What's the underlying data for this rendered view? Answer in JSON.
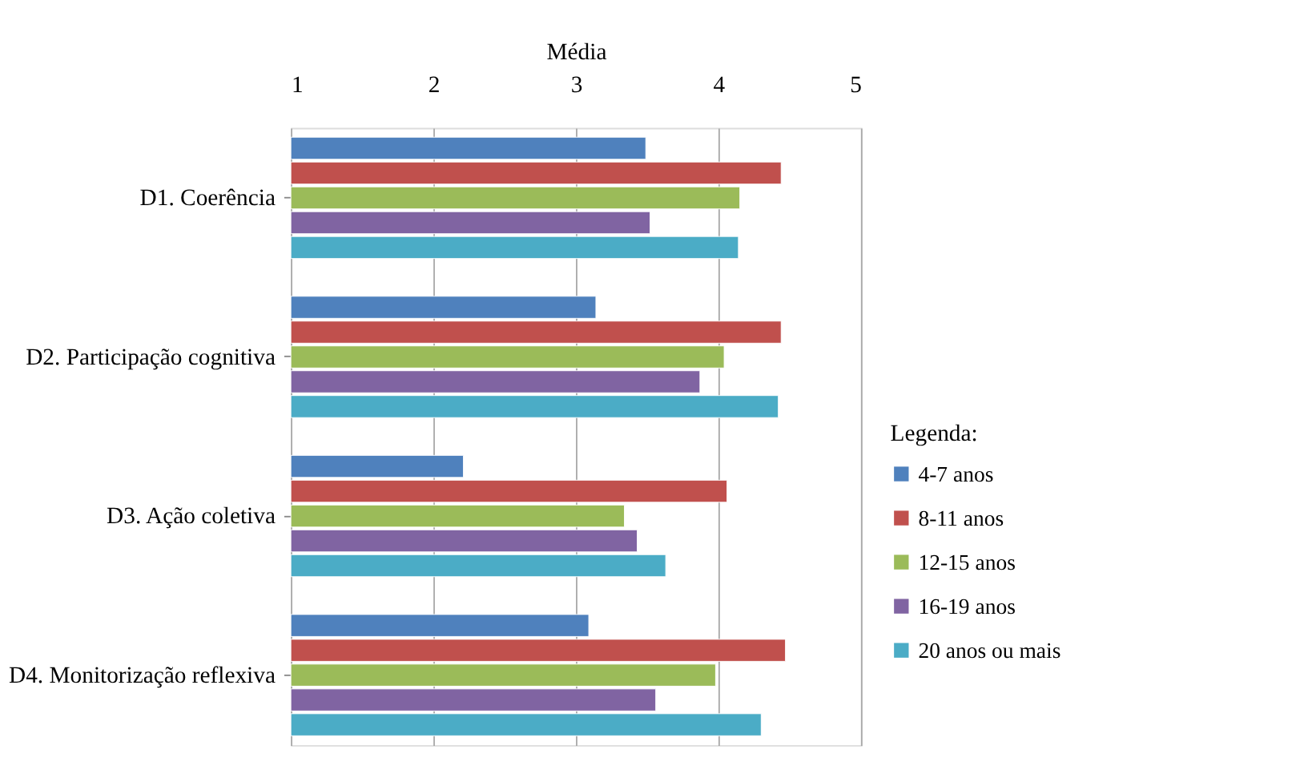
{
  "chart_data": {
    "type": "bar",
    "orientation": "horizontal",
    "xlabel": "Média",
    "legend_title": "Legenda:",
    "legend": "right",
    "grid": "x",
    "categories": [
      "D1. Coerência",
      "D2. Participação cognitiva",
      "D3. Ação coletiva",
      "D4. Monitorização reflexiva"
    ],
    "xlim": [
      1,
      5
    ],
    "xticks": [
      1,
      2,
      3,
      4,
      5
    ],
    "series": [
      {
        "name": "4-7 anos",
        "color": "#4f81bd",
        "values": [
          3.49,
          3.14,
          2.21,
          3.09
        ]
      },
      {
        "name": "8-11 anos",
        "color": "#c0504d",
        "values": [
          4.44,
          4.44,
          4.06,
          4.47
        ]
      },
      {
        "name": "12-15 anos",
        "color": "#9bbb59",
        "values": [
          4.15,
          4.04,
          3.34,
          3.98
        ]
      },
      {
        "name": "16-19 anos",
        "color": "#8064a2",
        "values": [
          3.52,
          3.87,
          3.43,
          3.56
        ]
      },
      {
        "name": "20 anos ou mais",
        "color": "#4bacc6",
        "values": [
          4.14,
          4.42,
          3.63,
          4.3
        ]
      }
    ]
  }
}
